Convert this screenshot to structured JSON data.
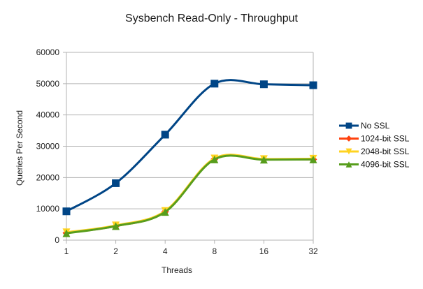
{
  "chart_data": {
    "type": "line",
    "title": "Sysbench Read-Only - Throughput",
    "xlabel": "Threads",
    "ylabel": "Queries Per Second",
    "categories": [
      "1",
      "2",
      "4",
      "8",
      "16",
      "32"
    ],
    "ylim": [
      0,
      60000
    ],
    "yticks": [
      0,
      10000,
      20000,
      30000,
      40000,
      50000,
      60000
    ],
    "grid": true,
    "smoothed": true,
    "legend_position": "right",
    "series": [
      {
        "name": "No SSL",
        "color": "#004586",
        "marker": "square",
        "values": [
          9200,
          18200,
          33700,
          50000,
          49800,
          49500
        ]
      },
      {
        "name": "1024-bit SSL",
        "color": "#ff420e",
        "marker": "diamond",
        "values": [
          2300,
          4500,
          9100,
          25900,
          25800,
          25800
        ]
      },
      {
        "name": "2048-bit SSL",
        "color": "#ffd320",
        "marker": "triangle-down",
        "values": [
          2500,
          4700,
          9300,
          26100,
          25900,
          26000
        ]
      },
      {
        "name": "4096-bit SSL",
        "color": "#579d1c",
        "marker": "triangle-up",
        "values": [
          2200,
          4500,
          9000,
          25800,
          25700,
          25800
        ]
      }
    ]
  }
}
